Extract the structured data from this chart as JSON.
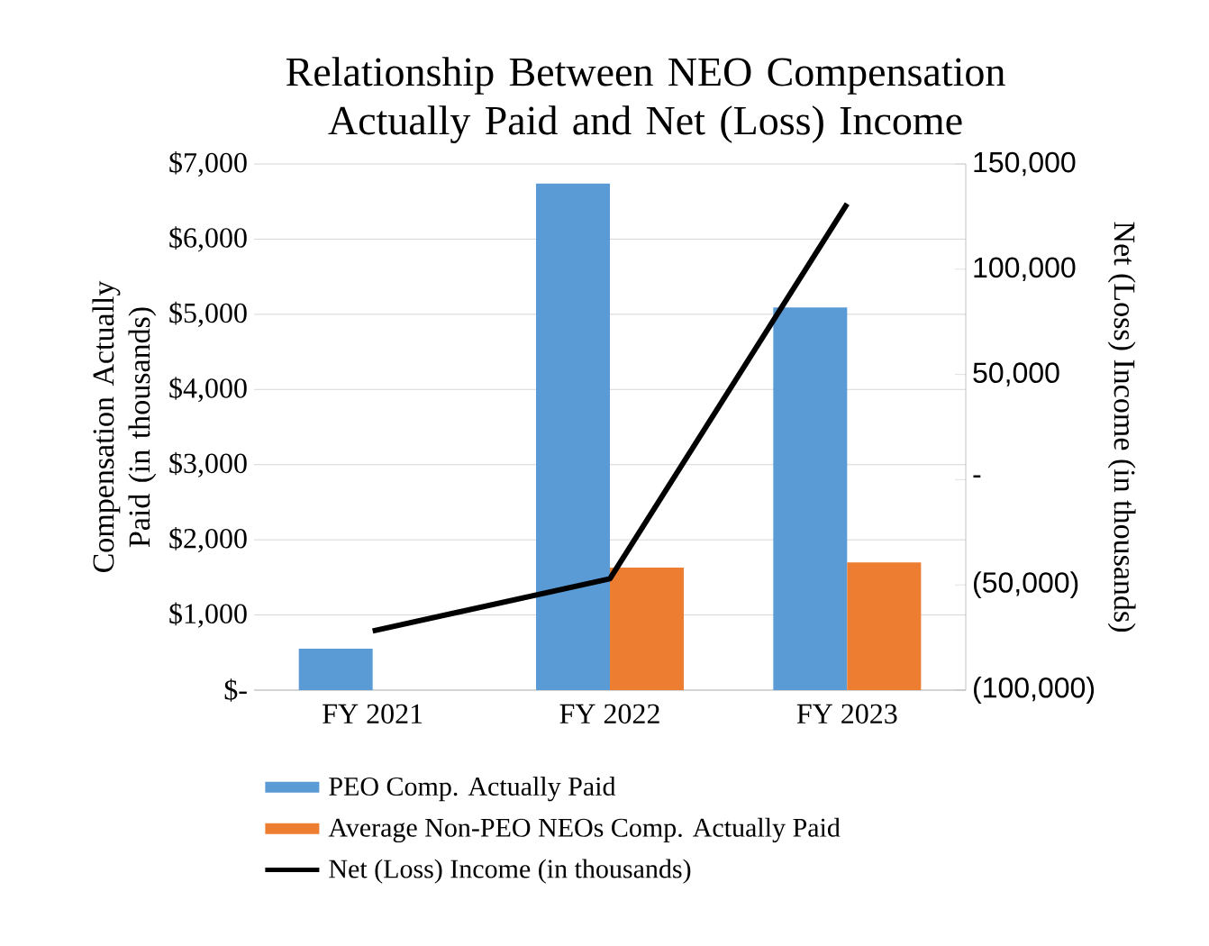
{
  "chart_data": {
    "type": "bar",
    "title": "Relationship Between NEO Compensation Actually Paid and Net (Loss) Income",
    "categories": [
      "FY 2021",
      "FY 2022",
      "FY 2023"
    ],
    "series": [
      {
        "name": "PEO Comp. Actually Paid",
        "color": "#5b9bd5",
        "values": [
          550,
          6740,
          5090
        ]
      },
      {
        "name": "Average Non-PEO NEOs Comp. Actually Paid",
        "color": "#ed7d31",
        "values": [
          null,
          1630,
          1700
        ]
      },
      {
        "name": "Net (Loss) Income (in thousands)",
        "type": "line",
        "axis": "y2",
        "color": "#000000",
        "values": [
          -71900,
          -47100,
          131100
        ]
      }
    ],
    "ylabel": "Compensation Actually Paid (in thousands)",
    "y2label": "Net (Loss) Income (in thousands)",
    "ylim": [
      0,
      7000
    ],
    "yticks": [
      {
        "value": 0,
        "label": "$-"
      },
      {
        "value": 1000,
        "label": "$1,000"
      },
      {
        "value": 2000,
        "label": "$2,000"
      },
      {
        "value": 3000,
        "label": "$3,000"
      },
      {
        "value": 4000,
        "label": "$4,000"
      },
      {
        "value": 5000,
        "label": "$5,000"
      },
      {
        "value": 6000,
        "label": "$6,000"
      },
      {
        "value": 7000,
        "label": "$7,000"
      }
    ],
    "y2lim": [
      -100000,
      150000
    ],
    "y2ticks": [
      {
        "value": -100000,
        "label": "(100,000)"
      },
      {
        "value": -50000,
        "label": "(50,000)"
      },
      {
        "value": 0,
        "label": "-"
      },
      {
        "value": 50000,
        "label": "50,000"
      },
      {
        "value": 100000,
        "label": "100,000"
      },
      {
        "value": 150000,
        "label": "150,000"
      }
    ],
    "grid": "y",
    "legend": "bottom"
  }
}
